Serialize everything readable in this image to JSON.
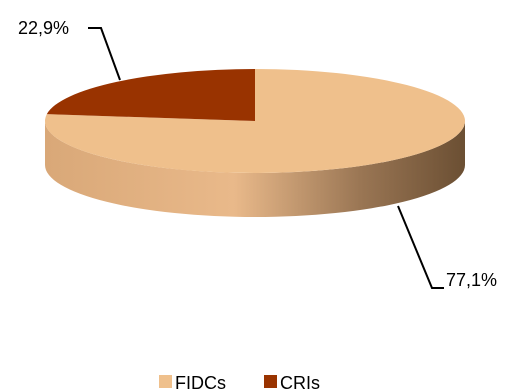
{
  "chart_data": {
    "type": "pie",
    "style": "3d",
    "categories": [
      "FIDCs",
      "CRIs"
    ],
    "values": [
      77.1,
      22.9
    ],
    "labels": [
      "77,1%",
      "22,9%"
    ],
    "colors": [
      "#EFC08C",
      "#993300"
    ],
    "legend": {
      "position": "bottom",
      "entries": [
        "FIDCs",
        "CRIs"
      ]
    }
  }
}
